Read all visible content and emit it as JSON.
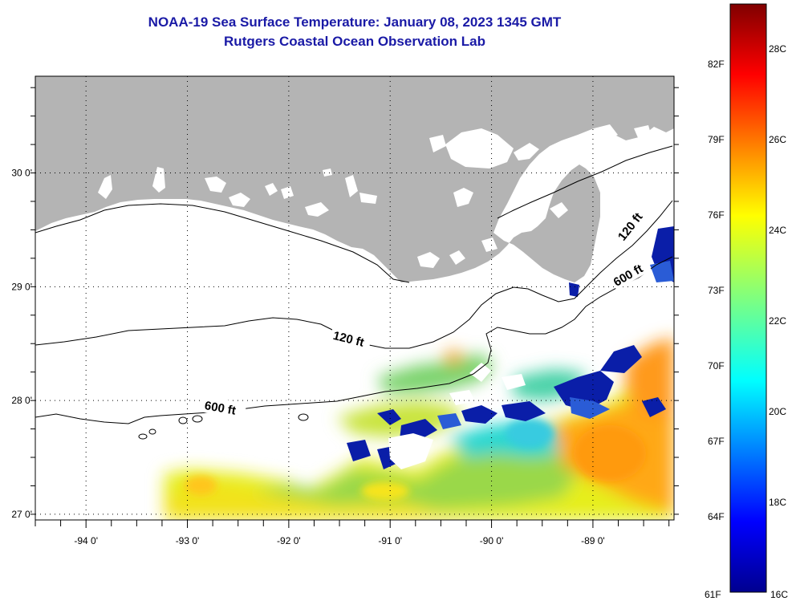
{
  "header": {
    "title": "NOAA-19 Sea Surface Temperature:  January 08, 2023 1345 GMT",
    "subtitle": "Rutgers Coastal Ocean Observation Lab"
  },
  "map": {
    "lon_range": [
      -94.5,
      -88.2
    ],
    "lat_range": [
      26.95,
      30.85
    ],
    "lon_ticks": [
      {
        "value": -94,
        "label": "-94 0'"
      },
      {
        "value": -93,
        "label": "-93 0'"
      },
      {
        "value": -92,
        "label": "-92 0'"
      },
      {
        "value": -91,
        "label": "-91 0'"
      },
      {
        "value": -90,
        "label": "-90 0'"
      },
      {
        "value": -89,
        "label": "-89 0'"
      }
    ],
    "lat_ticks": [
      {
        "value": 30,
        "label": "30 0'"
      },
      {
        "value": 29,
        "label": "29 0'"
      },
      {
        "value": 28,
        "label": "28 0'"
      },
      {
        "value": 27,
        "label": "27 0'"
      }
    ],
    "contour_labels": [
      "120 ft",
      "600 ft",
      "120 ft",
      "600 ft"
    ],
    "colors": {
      "land": "#b4b4b4",
      "contour": "#000000"
    }
  },
  "colorbar": {
    "fahrenheit_labels": [
      "82F",
      "79F",
      "76F",
      "73F",
      "70F",
      "67F",
      "64F",
      "61F"
    ],
    "celsius_labels": [
      "28C",
      "26C",
      "24C",
      "22C",
      "20C",
      "18C",
      "16C"
    ],
    "min_c": 16,
    "max_c": 29
  }
}
